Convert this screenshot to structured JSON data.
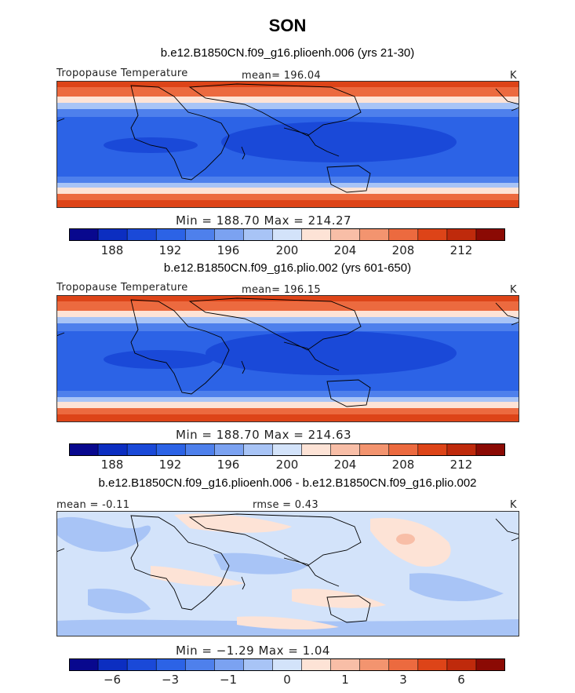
{
  "title": "SON",
  "palette": [
    "#08088e",
    "#0c2ec1",
    "#1a49d8",
    "#2c63e6",
    "#4e80ec",
    "#7ba2f1",
    "#a8c4f6",
    "#d3e3fa",
    "#fde3d6",
    "#f8bea7",
    "#f3946f",
    "#ec6a3f",
    "#dd4418",
    "#bf2a0c",
    "#8b0a04"
  ],
  "panels": [
    {
      "title": "b.e12.B1850CN.f09_g16.plioenh.006 (yrs 21-30)",
      "left_label": "Tropopause Temperature",
      "center_label": "mean=  196.04",
      "units": "K",
      "stats": "Min  =  188.70  Max  =  214.27",
      "ticks": [
        "188",
        "192",
        "196",
        "200",
        "204",
        "208",
        "212"
      ],
      "chart_data": {
        "type": "heatmap",
        "variable": "Tropopause Temperature",
        "units": "K",
        "mean": 196.04,
        "min": 188.7,
        "max": 214.27,
        "levels": [
          186,
          188,
          190,
          192,
          194,
          196,
          198,
          200,
          202,
          204,
          206,
          208,
          210,
          212,
          214
        ]
      }
    },
    {
      "title": "b.e12.B1850CN.f09_g16.plio.002 (yrs 601-650)",
      "left_label": "Tropopause Temperature",
      "center_label": "mean=  196.15",
      "units": "K",
      "stats": "Min  =  188.70  Max  =  214.63",
      "ticks": [
        "188",
        "192",
        "196",
        "200",
        "204",
        "208",
        "212"
      ],
      "chart_data": {
        "type": "heatmap",
        "variable": "Tropopause Temperature",
        "units": "K",
        "mean": 196.15,
        "min": 188.7,
        "max": 214.63,
        "levels": [
          186,
          188,
          190,
          192,
          194,
          196,
          198,
          200,
          202,
          204,
          206,
          208,
          210,
          212,
          214
        ]
      }
    },
    {
      "title": "b.e12.B1850CN.f09_g16.plioenh.006 - b.e12.B1850CN.f09_g16.plio.002",
      "left_label": "mean =  -0.11",
      "center_label": "rmse =     0.43",
      "units": "K",
      "stats": "Min  =   −1.29  Max  =     1.04",
      "ticks": [
        "−6",
        "−3",
        "−1",
        "0",
        "1",
        "3",
        "6"
      ],
      "chart_data": {
        "type": "heatmap",
        "variable": "Difference",
        "units": "K",
        "mean": -0.11,
        "rmse": 0.43,
        "min": -1.29,
        "max": 1.04,
        "levels": [
          -8,
          -6,
          -4,
          -3,
          -2,
          -1,
          -0.5,
          0,
          0.5,
          1,
          2,
          3,
          4,
          6,
          8
        ]
      }
    }
  ]
}
